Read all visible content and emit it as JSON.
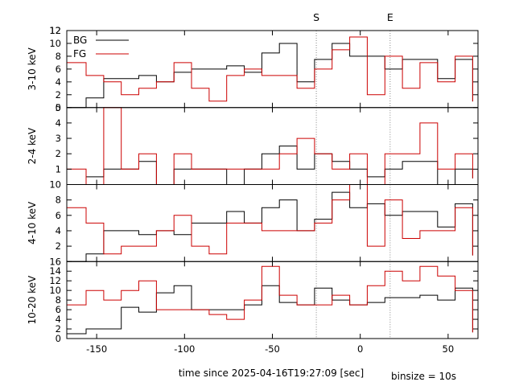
{
  "figure": {
    "xlabel": "time since 2025-04-16T19:27:09 [sec]",
    "binsize_label": "binsize = 10s",
    "markers": [
      {
        "label": "S",
        "x": -25
      },
      {
        "label": "E",
        "x": 17
      }
    ],
    "colors": {
      "bg": "#000000",
      "fg": "#cc0000",
      "marker": "#888888"
    }
  },
  "chart_data": [
    {
      "type": "line",
      "panel": "3-10 keV",
      "ylabel": "3-10 keV",
      "xlim": [
        -167,
        67
      ],
      "ylim": [
        0,
        12
      ],
      "yticks": [
        0,
        2,
        4,
        6,
        8,
        10,
        12
      ],
      "xticks": [
        -150,
        -100,
        -50,
        0,
        50
      ],
      "legend": [
        "BG",
        "FG"
      ],
      "bin_edges": [
        -167,
        -156,
        -146,
        -136,
        -126,
        -116,
        -106,
        -96,
        -86,
        -76,
        -66,
        -56,
        -46,
        -36,
        -26,
        -16,
        -6,
        4,
        14,
        24,
        34,
        44,
        54,
        64
      ],
      "series": [
        {
          "name": "BG",
          "values": [
            0,
            1.5,
            4.5,
            4.5,
            5,
            4,
            5.5,
            6,
            6,
            6.5,
            5.5,
            8.5,
            10,
            4,
            7.5,
            10,
            8,
            8,
            6,
            7.5,
            7.5,
            4.5,
            7.5
          ]
        },
        {
          "name": "FG",
          "values": [
            7,
            5,
            4,
            2,
            3,
            4,
            7,
            3,
            1,
            5,
            6,
            5,
            5,
            3,
            6,
            9,
            11,
            2,
            8,
            3,
            7,
            4,
            8
          ]
        }
      ]
    },
    {
      "type": "line",
      "panel": "2-4 keV",
      "ylabel": "2-4 keV",
      "xlim": [
        -167,
        67
      ],
      "ylim": [
        0,
        5
      ],
      "yticks": [
        1,
        2,
        3,
        4
      ],
      "xticks": [
        -150,
        -100,
        -50,
        0,
        50
      ],
      "bin_edges": [
        -167,
        -156,
        -146,
        -136,
        -126,
        -116,
        -106,
        -96,
        -86,
        -76,
        -66,
        -56,
        -46,
        -36,
        -26,
        -16,
        -6,
        4,
        14,
        24,
        34,
        44,
        54,
        64
      ],
      "series": [
        {
          "name": "BG",
          "values": [
            0,
            0.5,
            1,
            1,
            1.5,
            0,
            1,
            1,
            1,
            0,
            1,
            2,
            2.5,
            1,
            2,
            1.5,
            1,
            0.5,
            1,
            1.5,
            1.5,
            0,
            1
          ]
        },
        {
          "name": "FG",
          "values": [
            1,
            0,
            5,
            1,
            2,
            0,
            2,
            1,
            1,
            1,
            1,
            1,
            2,
            3,
            2,
            1,
            2,
            0,
            2,
            2,
            4,
            1,
            2
          ]
        }
      ]
    },
    {
      "type": "line",
      "panel": "4-10 keV",
      "ylabel": "4-10 keV",
      "xlim": [
        -167,
        67
      ],
      "ylim": [
        0,
        10
      ],
      "yticks": [
        2,
        4,
        6,
        8
      ],
      "xticks": [
        -150,
        -100,
        -50,
        0,
        50
      ],
      "bin_edges": [
        -167,
        -156,
        -146,
        -136,
        -126,
        -116,
        -106,
        -96,
        -86,
        -76,
        -66,
        -56,
        -46,
        -36,
        -26,
        -16,
        -6,
        4,
        14,
        24,
        34,
        44,
        54,
        64
      ],
      "series": [
        {
          "name": "BG",
          "values": [
            0,
            1,
            4,
            4,
            3.5,
            4,
            3.5,
            5,
            5,
            6.5,
            5,
            7,
            8,
            4,
            5.5,
            9,
            7,
            7.5,
            6,
            6.5,
            6.5,
            4.5,
            7.5
          ]
        },
        {
          "name": "FG",
          "values": [
            7,
            5,
            1,
            2,
            2,
            4,
            6,
            2,
            1,
            5,
            5,
            4,
            4,
            4,
            5,
            8,
            10,
            2,
            8,
            3,
            4,
            4,
            7
          ]
        }
      ]
    },
    {
      "type": "line",
      "panel": "10-20 keV",
      "ylabel": "10-20 keV",
      "xlim": [
        -167,
        67
      ],
      "ylim": [
        0,
        16
      ],
      "yticks": [
        0,
        2,
        4,
        6,
        8,
        10,
        12,
        14
      ],
      "xticks": [
        -150,
        -100,
        -50,
        0,
        50
      ],
      "bin_edges": [
        -167,
        -156,
        -146,
        -136,
        -126,
        -116,
        -106,
        -96,
        -86,
        -76,
        -66,
        -56,
        -46,
        -36,
        -26,
        -16,
        -6,
        4,
        14,
        24,
        34,
        44,
        54,
        64
      ],
      "series": [
        {
          "name": "BG",
          "values": [
            1,
            2,
            2,
            6.5,
            5.5,
            9.5,
            11,
            6,
            6,
            6,
            7,
            11,
            7.5,
            7,
            10.5,
            8,
            7,
            7.5,
            8.5,
            8.5,
            9,
            8,
            10.5
          ]
        },
        {
          "name": "FG",
          "values": [
            7,
            10,
            8,
            10,
            12,
            6,
            6,
            6,
            5,
            4,
            8,
            15,
            9,
            7,
            7,
            9,
            7,
            11,
            14,
            12,
            15,
            13,
            10
          ]
        }
      ]
    }
  ]
}
